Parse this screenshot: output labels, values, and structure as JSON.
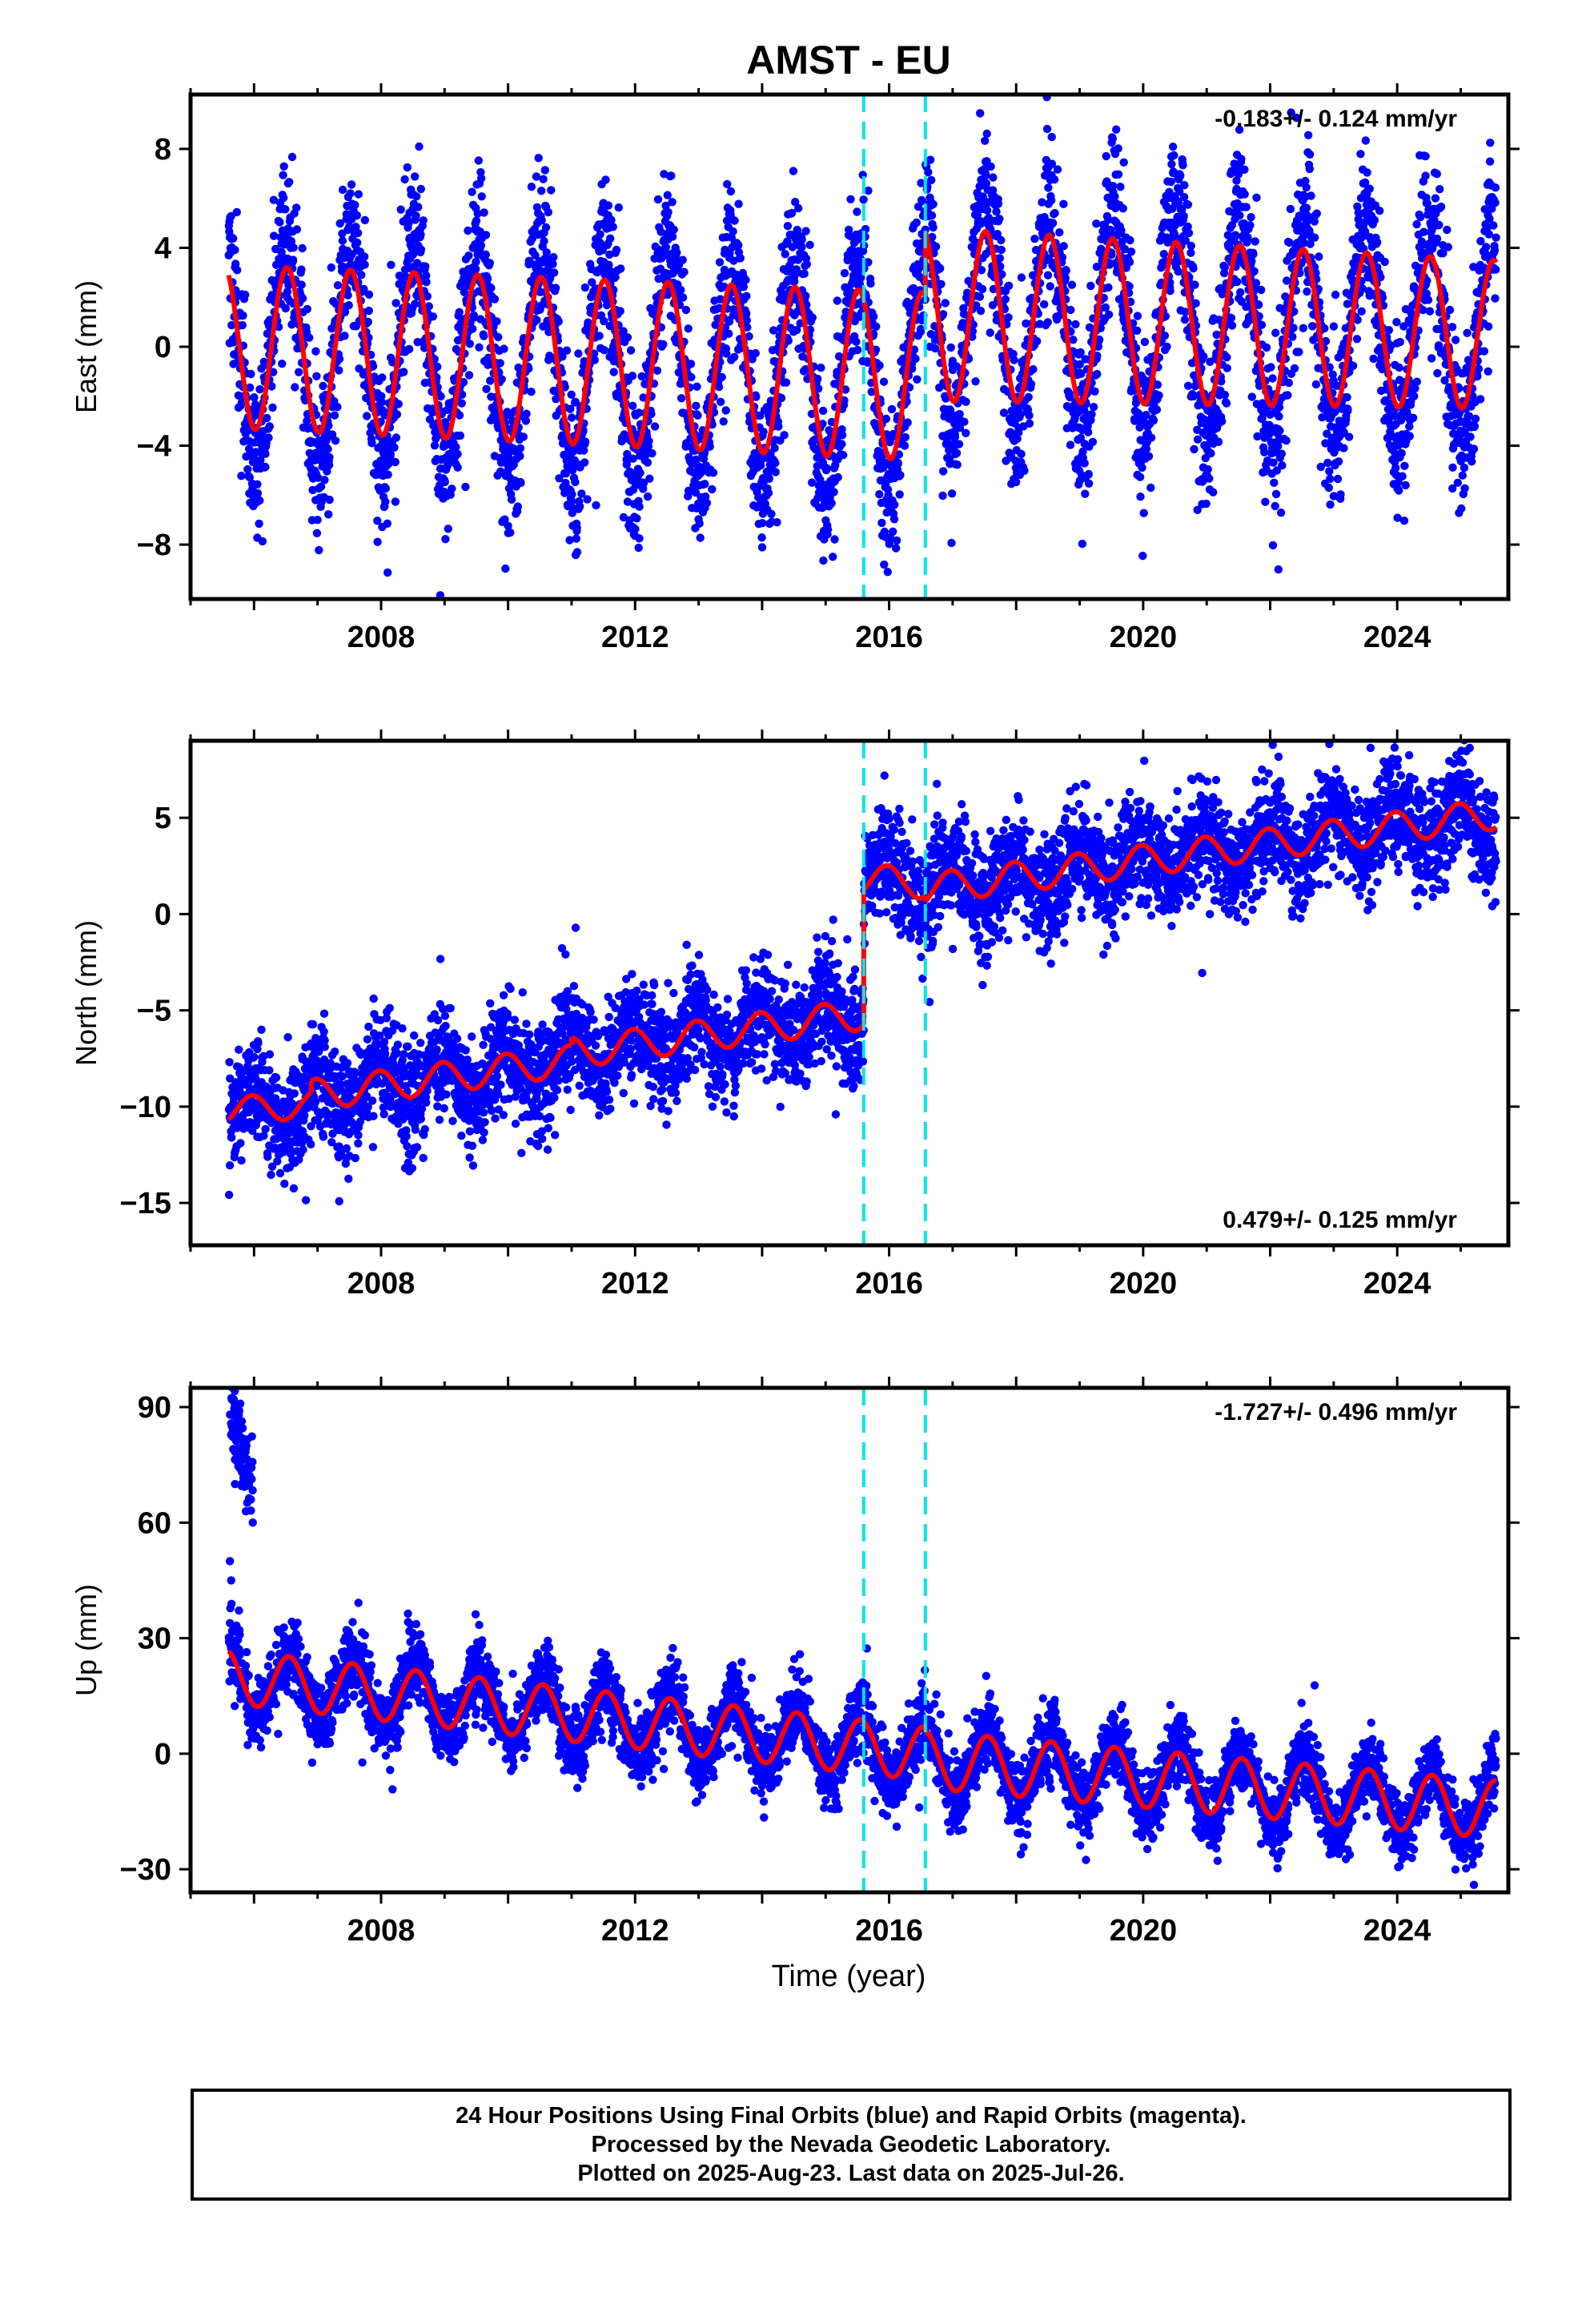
{
  "title": "AMST - EU",
  "xlabel": "Time (year)",
  "footer": {
    "line1": "24 Hour Positions Using Final Orbits (blue) and Rapid Orbits (magenta).",
    "line2": "Processed by the Nevada Geodetic Laboratory.",
    "line3": "Plotted on 2025-Aug-23. Last data on 2025-Jul-26."
  },
  "colors": {
    "data": "#0000ff",
    "model": "#ff0000",
    "event_lines": "#00e5ee",
    "axes": "#000000"
  },
  "chart_data": [
    {
      "type": "scatter",
      "panel": "east",
      "ylabel": "East (mm)",
      "rate_text": "-0.183+/- 0.124 mm/yr",
      "rate_position": "top-right",
      "xlim": [
        2005.0,
        2025.75
      ],
      "ylim": [
        -10.2,
        10.2
      ],
      "xticks": [
        2008,
        2012,
        2016,
        2020,
        2024
      ],
      "xtick_labels": [
        "2008",
        "2012",
        "2016",
        "2020",
        "2024"
      ],
      "yticks": [
        -8,
        -4,
        0,
        4,
        8
      ],
      "ytick_labels": [
        "−8",
        "−4",
        "0",
        "4",
        "8"
      ],
      "event_lines": [
        2015.6,
        2016.57
      ],
      "data_range": [
        2005.6,
        2025.56
      ],
      "model": {
        "segments": [
          {
            "start": 2005.6,
            "end": 2016.57,
            "offset": 0.0,
            "trend_start": 0.0,
            "trend_end": -1.2,
            "amp_start": 3.3,
            "amp_end": 3.4
          },
          {
            "start": 2016.57,
            "end": 2025.56,
            "offset": 1.0,
            "trend_start": 1.3,
            "trend_end": 0.5,
            "amp_start": 3.5,
            "amp_end": 3.0
          }
        ],
        "phase": 0.27
      },
      "scatter": {
        "noise": 1.6,
        "amp_extra": 1.4,
        "density": 260
      }
    },
    {
      "type": "scatter",
      "panel": "north",
      "ylabel": "North (mm)",
      "rate_text": "0.479+/- 0.125 mm/yr",
      "rate_position": "bottom-right",
      "xlim": [
        2005.0,
        2025.75
      ],
      "ylim": [
        -17.2,
        9.0
      ],
      "xticks": [
        2008,
        2012,
        2016,
        2020,
        2024
      ],
      "xtick_labels": [
        "2008",
        "2012",
        "2016",
        "2020",
        "2024"
      ],
      "yticks": [
        -15,
        -10,
        -5,
        0,
        5
      ],
      "ytick_labels": [
        "−15",
        "−10",
        "−5",
        "0",
        "5"
      ],
      "event_lines": [
        2015.6,
        2016.57
      ],
      "data_range": [
        2005.6,
        2025.56
      ],
      "model": {
        "segments": [
          {
            "start": 2005.6,
            "end": 2006.9,
            "offset": 0,
            "trend_start": -10.2,
            "trend_end": -9.9,
            "amp_start": 0.7,
            "amp_end": 0.7
          },
          {
            "start": 2006.9,
            "end": 2011.0,
            "offset": 0,
            "trend_start": -9.4,
            "trend_end": -7.6,
            "amp_start": 0.8,
            "amp_end": 0.8
          },
          {
            "start": 2011.0,
            "end": 2015.6,
            "offset": 0,
            "trend_start": -7.2,
            "trend_end": -5.2,
            "amp_start": 0.8,
            "amp_end": 0.8
          },
          {
            "start": 2015.6,
            "end": 2016.57,
            "offset": 0,
            "trend_start": 1.8,
            "trend_end": 1.6,
            "amp_start": 0.8,
            "amp_end": 0.8
          },
          {
            "start": 2016.57,
            "end": 2025.56,
            "offset": 0,
            "trend_start": 1.3,
            "trend_end": 5.2,
            "amp_start": 0.8,
            "amp_end": 0.8
          }
        ],
        "phase": 0.72
      },
      "scatter": {
        "noise": 1.4,
        "amp_extra": 0.5,
        "density": 260
      }
    },
    {
      "type": "scatter",
      "panel": "up",
      "ylabel": "Up (mm)",
      "rate_text": "-1.727+/- 0.496 mm/yr",
      "rate_position": "top-right",
      "xlim": [
        2005.0,
        2025.75
      ],
      "ylim": [
        -36,
        95
      ],
      "xticks": [
        2008,
        2012,
        2016,
        2020,
        2024
      ],
      "xtick_labels": [
        "2008",
        "2012",
        "2016",
        "2020",
        "2024"
      ],
      "yticks": [
        -30,
        0,
        30,
        60,
        90
      ],
      "ytick_labels": [
        "−30",
        "0",
        "30",
        "60",
        "90"
      ],
      "event_lines": [
        2015.6,
        2016.57
      ],
      "data_range": [
        2005.6,
        2025.56
      ],
      "model": {
        "segments": [
          {
            "start": 2005.6,
            "end": 2016.57,
            "offset": 0,
            "trend_start": 20.0,
            "trend_end": 0.0,
            "amp_start": 7.0,
            "amp_end": 7.0
          },
          {
            "start": 2016.57,
            "end": 2025.56,
            "offset": 0,
            "trend_start": -1.5,
            "trend_end": -14.5,
            "amp_start": 7.5,
            "amp_end": 7.5
          }
        ],
        "phase": 0.3
      },
      "scatter": {
        "noise": 4.5,
        "amp_extra": 2.0,
        "density": 260
      },
      "early_outliers": [
        [
          2005.65,
          85
        ],
        [
          2005.68,
          92
        ],
        [
          2005.72,
          78
        ],
        [
          2005.76,
          88
        ],
        [
          2005.8,
          82
        ],
        [
          2005.84,
          74
        ],
        [
          2005.88,
          80
        ],
        [
          2005.92,
          70
        ],
        [
          2005.95,
          66
        ],
        [
          2005.98,
          60
        ],
        [
          2005.62,
          50
        ],
        [
          2005.64,
          45
        ],
        [
          2005.7,
          70
        ]
      ]
    }
  ]
}
